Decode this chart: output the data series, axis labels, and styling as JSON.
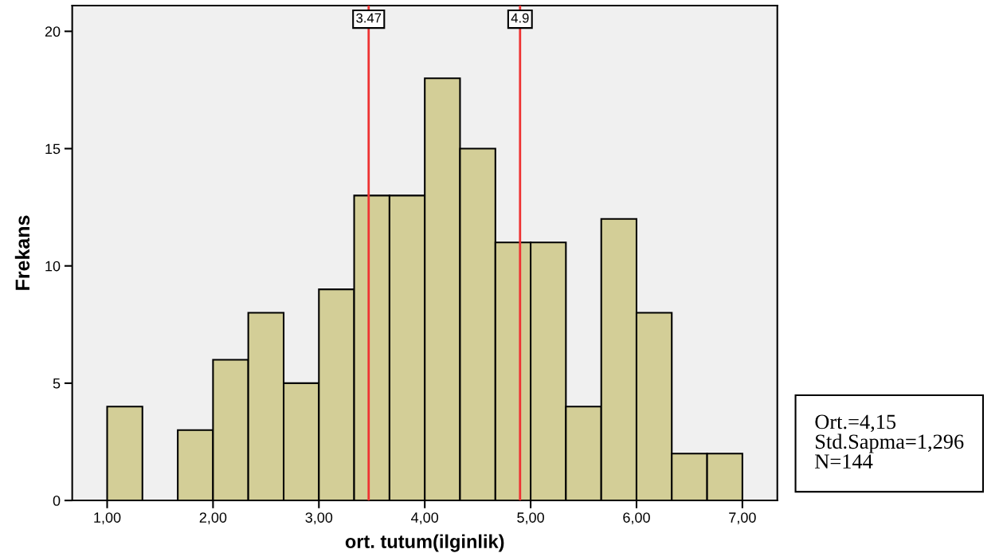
{
  "chart_data": {
    "type": "histogram",
    "xlabel": "ort. tutum(ilginlik)",
    "ylabel": "Frekans",
    "bins": [
      1,
      1.333,
      1.667,
      2,
      2.333,
      2.667,
      3,
      3.333,
      3.667,
      4,
      4.333,
      4.667,
      5,
      5.333,
      5.667,
      6,
      6.333,
      6.667,
      7
    ],
    "values": [
      4,
      0,
      3,
      6,
      8,
      5,
      9,
      13,
      13,
      18,
      15,
      11,
      11,
      4,
      12,
      8,
      2,
      2
    ],
    "color": "#d3ce97",
    "xlim": [
      0.67,
      7.33
    ],
    "ylim": [
      0,
      21.1
    ],
    "xticks": [
      {
        "value": 1,
        "label": "1,00"
      },
      {
        "value": 2,
        "label": "2,00"
      },
      {
        "value": 3,
        "label": "3,00"
      },
      {
        "value": 4,
        "label": "4,00"
      },
      {
        "value": 5,
        "label": "5,00"
      },
      {
        "value": 6,
        "label": "6,00"
      },
      {
        "value": 7,
        "label": "7,00"
      }
    ],
    "yticks": [
      0,
      5,
      10,
      15,
      20
    ],
    "ref_lines": [
      {
        "axis": "x",
        "value": 3.47,
        "label": "3.47",
        "color": "#ee3333"
      },
      {
        "axis": "x",
        "value": 4.9,
        "label": "4.9",
        "color": "#ee3333"
      }
    ],
    "annotations": [
      "Ort.=4,15",
      "Std.Sapma=1,296",
      "N=144"
    ],
    "grid": false,
    "legend": false
  }
}
